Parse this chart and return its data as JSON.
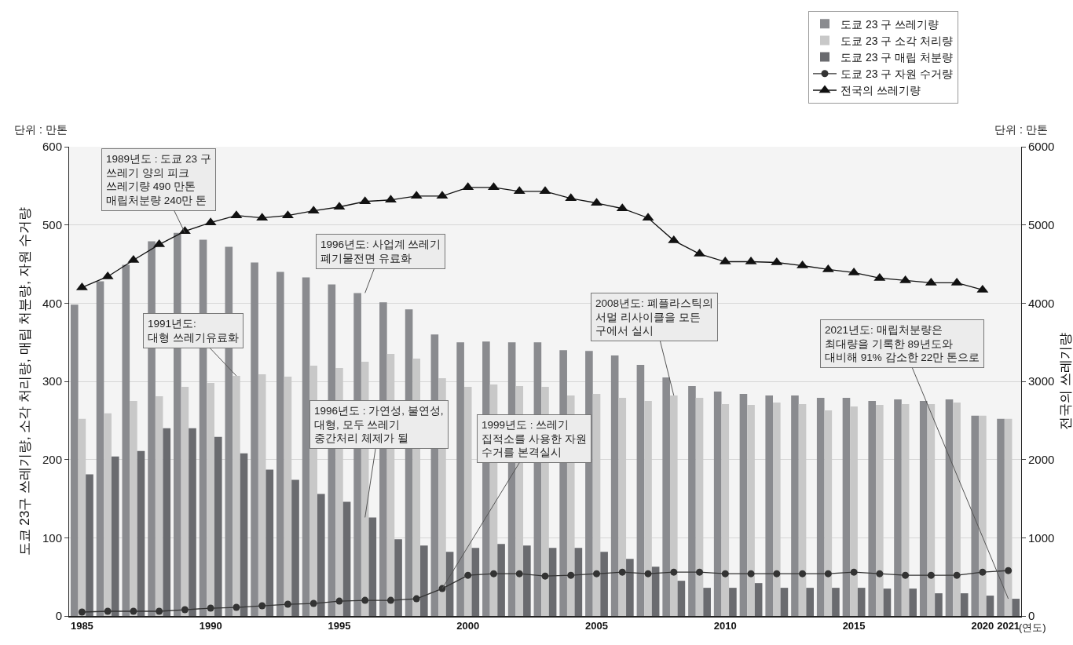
{
  "chart_data": {
    "type": "bar",
    "x": [
      1985,
      1986,
      1987,
      1988,
      1989,
      1990,
      1991,
      1992,
      1993,
      1994,
      1995,
      1996,
      1997,
      1998,
      1999,
      2000,
      2001,
      2002,
      2003,
      2004,
      2005,
      2006,
      2007,
      2008,
      2009,
      2010,
      2011,
      2012,
      2013,
      2014,
      2015,
      2016,
      2017,
      2018,
      2019,
      2020,
      2021
    ],
    "series": [
      {
        "name": "도쿄 23 구 쓰레기량",
        "color": "#8a8b8f",
        "values": [
          398,
          428,
          449,
          479,
          490,
          481,
          472,
          452,
          440,
          433,
          424,
          413,
          401,
          392,
          360,
          350,
          351,
          350,
          350,
          340,
          339,
          333,
          321,
          305,
          294,
          287,
          284,
          282,
          282,
          279,
          279,
          275,
          277,
          275,
          277,
          256,
          252
        ]
      },
      {
        "name": "도쿄 23 구 소각 처리량",
        "color": "#c8c8c8",
        "values": [
          252,
          259,
          275,
          281,
          293,
          298,
          307,
          309,
          306,
          320,
          317,
          325,
          335,
          329,
          304,
          293,
          296,
          294,
          293,
          282,
          284,
          279,
          275,
          282,
          279,
          271,
          270,
          273,
          271,
          263,
          268,
          270,
          271,
          271,
          273,
          256,
          252
        ]
      },
      {
        "name": "도쿄 23 구 매립 처분량",
        "color": "#6a6b6f",
        "values": [
          181,
          204,
          211,
          240,
          240,
          229,
          208,
          187,
          174,
          156,
          146,
          126,
          98,
          90,
          82,
          87,
          92,
          90,
          87,
          87,
          82,
          73,
          63,
          45,
          36,
          36,
          42,
          36,
          36,
          36,
          36,
          35,
          35,
          29,
          29,
          26,
          22
        ]
      },
      {
        "name": "도쿄 23 구 자원 수거량",
        "type": "line",
        "marker": "circle",
        "color": "#333333",
        "values": [
          5,
          6,
          6,
          6,
          8,
          10,
          11,
          13,
          15,
          16,
          19,
          20,
          20,
          22,
          35,
          52,
          54,
          54,
          51,
          52,
          54,
          56,
          54,
          56,
          56,
          54,
          54,
          54,
          54,
          54,
          56,
          54,
          52,
          52,
          52,
          56,
          58
        ]
      },
      {
        "name": "전국의 쓰레기량",
        "type": "line",
        "marker": "triangle",
        "axis": "y2",
        "color": "#111111",
        "values": [
          4200,
          4340,
          4550,
          4750,
          4920,
          5030,
          5120,
          5090,
          5120,
          5180,
          5230,
          5300,
          5320,
          5370,
          5370,
          5480,
          5480,
          5430,
          5430,
          5340,
          5280,
          5210,
          5090,
          4800,
          4630,
          4530,
          4530,
          4520,
          4480,
          4430,
          4390,
          4320,
          4290,
          4260,
          4260,
          4170,
          null
        ]
      }
    ],
    "ylabel": "도쿄 23구 쓰레기량, 소각 처리량, 매립 처분량, 자원 수거량",
    "y2label": "전국의 쓰레기량",
    "xlim": [
      1984.5,
      2021.5
    ],
    "xticks": [
      1985,
      1990,
      1995,
      2000,
      2005,
      2010,
      2015,
      2020,
      2021
    ],
    "xlabel": "(연도)",
    "ylim": [
      0,
      600
    ],
    "yticks": [
      0,
      100,
      200,
      300,
      400,
      500,
      600
    ],
    "y2lim": [
      0,
      6000
    ],
    "y2ticks": [
      0,
      1000,
      2000,
      3000,
      4000,
      5000,
      6000
    ],
    "grid": "y",
    "legend": "top right",
    "annotations": [
      "단위 : 만톤",
      "단위 : 만톤",
      {
        "text": "1989년도 : 도쿄 23 구\n쓰레기 양의 피크\n쓰레기량 490 만톤\n매립처분량 240만 톤",
        "x": 1989,
        "y": 490
      },
      {
        "text": "1991년도:\n대형 쓰레기유료화",
        "x": 1991,
        "y": 307
      },
      {
        "text": "1996년도: 사업계 쓰레기\n폐기물전면 유료화",
        "x": 1996,
        "y": 413
      },
      {
        "text": "1996년도 : 가연성, 불연성,\n대형, 모두 쓰레기\n중간처리 체제가 될",
        "x": 1996,
        "y": 126
      },
      {
        "text": "1999년도 : 쓰레기\n집적소를 사용한 자원\n수거를 본격실시",
        "x": 1999,
        "y": 35
      },
      {
        "text": "2008년도: 폐플라스틱의\n서멀 리사이클을 모든\n구에서 실시",
        "x": 2008,
        "y": 282
      },
      {
        "text": "2021년도: 매립처분량은\n최대량을 기록한 89년도와\n대비해 91% 감소한 22만 톤으로",
        "x": 2021,
        "y": 22
      }
    ]
  }
}
